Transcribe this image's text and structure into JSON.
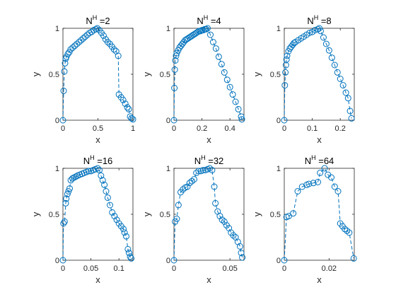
{
  "figure": {
    "background": "#ffffff"
  },
  "chart_data": [
    {
      "type": "scatter",
      "title": {
        "base": "N",
        "sup": "H",
        "suffix": " =2"
      },
      "xlabel": "x",
      "ylabel": "y",
      "xlim": [
        0,
        1
      ],
      "ylim": [
        0,
        1
      ],
      "xticks": [
        0,
        0.5,
        1
      ],
      "xtick_labels": [
        "0",
        "0.5",
        "1"
      ],
      "yticks": [
        0,
        0.5,
        1
      ],
      "ytick_labels": [
        "0",
        "0.5",
        "1"
      ],
      "series": [
        {
          "color": "#0072BD",
          "marker": "circle",
          "line_style": "dashed",
          "points": [
            [
              0,
              0
            ],
            [
              0.01,
              0.32
            ],
            [
              0.02,
              0.53
            ],
            [
              0.03,
              0.62
            ],
            [
              0.04,
              0.67
            ],
            [
              0.05,
              0.69
            ],
            [
              0.07,
              0.72
            ],
            [
              0.09,
              0.74
            ],
            [
              0.11,
              0.77
            ],
            [
              0.14,
              0.79
            ],
            [
              0.17,
              0.81
            ],
            [
              0.2,
              0.83
            ],
            [
              0.23,
              0.85
            ],
            [
              0.26,
              0.87
            ],
            [
              0.29,
              0.89
            ],
            [
              0.32,
              0.91
            ],
            [
              0.35,
              0.93
            ],
            [
              0.38,
              0.95
            ],
            [
              0.41,
              0.96
            ],
            [
              0.44,
              0.98
            ],
            [
              0.47,
              0.99
            ],
            [
              0.49,
              1.0
            ],
            [
              0.52,
              0.98
            ],
            [
              0.55,
              0.95
            ],
            [
              0.58,
              0.92
            ],
            [
              0.61,
              0.88
            ],
            [
              0.64,
              0.85
            ],
            [
              0.67,
              0.83
            ],
            [
              0.7,
              0.8
            ],
            [
              0.73,
              0.77
            ],
            [
              0.76,
              0.75
            ],
            [
              0.79,
              0.7
            ],
            [
              0.8,
              0.28
            ],
            [
              0.83,
              0.25
            ],
            [
              0.86,
              0.22
            ],
            [
              0.89,
              0.18
            ],
            [
              0.92,
              0.14
            ],
            [
              0.94,
              0.12
            ],
            [
              0.96,
              0.04
            ],
            [
              0.98,
              0.02
            ],
            [
              1.0,
              0.01
            ]
          ]
        }
      ]
    },
    {
      "type": "scatter",
      "title": {
        "base": "N",
        "sup": "H",
        "suffix": " =4"
      },
      "xlabel": "x",
      "ylabel": "y",
      "xlim": [
        0,
        0.5
      ],
      "ylim": [
        0,
        1
      ],
      "xticks": [
        0,
        0.2,
        0.4
      ],
      "xtick_labels": [
        "0",
        "0.2",
        "0.4"
      ],
      "yticks": [
        0,
        0.5,
        1
      ],
      "ytick_labels": [
        "0",
        "0.5",
        "1"
      ],
      "series": [
        {
          "color": "#0072BD",
          "marker": "circle",
          "line_style": "dashed",
          "points": [
            [
              0,
              0
            ],
            [
              0.003,
              0.35
            ],
            [
              0.006,
              0.55
            ],
            [
              0.01,
              0.65
            ],
            [
              0.015,
              0.7
            ],
            [
              0.02,
              0.73
            ],
            [
              0.03,
              0.76
            ],
            [
              0.04,
              0.79
            ],
            [
              0.05,
              0.81
            ],
            [
              0.06,
              0.83
            ],
            [
              0.07,
              0.85
            ],
            [
              0.08,
              0.87
            ],
            [
              0.09,
              0.88
            ],
            [
              0.1,
              0.89
            ],
            [
              0.11,
              0.9
            ],
            [
              0.12,
              0.91
            ],
            [
              0.13,
              0.92
            ],
            [
              0.14,
              0.93
            ],
            [
              0.15,
              0.94
            ],
            [
              0.16,
              0.95
            ],
            [
              0.17,
              0.96
            ],
            [
              0.18,
              0.97
            ],
            [
              0.19,
              0.97
            ],
            [
              0.2,
              0.98
            ],
            [
              0.21,
              0.98
            ],
            [
              0.22,
              0.99
            ],
            [
              0.23,
              0.99
            ],
            [
              0.24,
              1.0
            ],
            [
              0.26,
              0.93
            ],
            [
              0.28,
              0.85
            ],
            [
              0.3,
              0.78
            ],
            [
              0.32,
              0.69
            ],
            [
              0.34,
              0.61
            ],
            [
              0.36,
              0.52
            ],
            [
              0.38,
              0.44
            ],
            [
              0.4,
              0.36
            ],
            [
              0.42,
              0.28
            ],
            [
              0.44,
              0.2
            ],
            [
              0.46,
              0.12
            ],
            [
              0.48,
              0.04
            ],
            [
              0.485,
              0.01
            ]
          ]
        }
      ]
    },
    {
      "type": "scatter",
      "title": {
        "base": "N",
        "sup": "H",
        "suffix": " =8"
      },
      "xlabel": "x",
      "ylabel": "y",
      "xlim": [
        0,
        0.25
      ],
      "ylim": [
        0,
        1
      ],
      "xticks": [
        0,
        0.1,
        0.2
      ],
      "xtick_labels": [
        "0",
        "0.1",
        "0.2"
      ],
      "yticks": [
        0,
        0.5,
        1
      ],
      "ytick_labels": [
        "0",
        "0.5",
        "1"
      ],
      "series": [
        {
          "color": "#0072BD",
          "marker": "circle",
          "line_style": "dashed",
          "points": [
            [
              0,
              0
            ],
            [
              0.002,
              0.38
            ],
            [
              0.004,
              0.52
            ],
            [
              0.006,
              0.6
            ],
            [
              0.008,
              0.66
            ],
            [
              0.01,
              0.7
            ],
            [
              0.015,
              0.75
            ],
            [
              0.02,
              0.78
            ],
            [
              0.025,
              0.8
            ],
            [
              0.03,
              0.82
            ],
            [
              0.035,
              0.84
            ],
            [
              0.04,
              0.85
            ],
            [
              0.05,
              0.87
            ],
            [
              0.06,
              0.89
            ],
            [
              0.07,
              0.91
            ],
            [
              0.08,
              0.93
            ],
            [
              0.09,
              0.95
            ],
            [
              0.1,
              0.96
            ],
            [
              0.11,
              0.98
            ],
            [
              0.12,
              0.99
            ],
            [
              0.125,
              1.0
            ],
            [
              0.13,
              0.97
            ],
            [
              0.14,
              0.9
            ],
            [
              0.15,
              0.83
            ],
            [
              0.16,
              0.76
            ],
            [
              0.17,
              0.68
            ],
            [
              0.18,
              0.6
            ],
            [
              0.19,
              0.52
            ],
            [
              0.2,
              0.45
            ],
            [
              0.21,
              0.38
            ],
            [
              0.22,
              0.3
            ],
            [
              0.228,
              0.24
            ],
            [
              0.235,
              0.1
            ],
            [
              0.24,
              0.02
            ]
          ]
        }
      ]
    },
    {
      "type": "scatter",
      "title": {
        "base": "N",
        "sup": "H",
        "suffix": " =16"
      },
      "xlabel": "x",
      "ylabel": "y",
      "xlim": [
        0,
        0.125
      ],
      "ylim": [
        0,
        1
      ],
      "xticks": [
        0,
        0.05,
        0.1
      ],
      "xtick_labels": [
        "0",
        "0.05",
        "0.1"
      ],
      "yticks": [
        0,
        0.5,
        1
      ],
      "ytick_labels": [
        "0",
        "0.5",
        "1"
      ],
      "series": [
        {
          "color": "#0072BD",
          "marker": "circle",
          "line_style": "dashed",
          "points": [
            [
              0,
              0
            ],
            [
              0.001,
              0.4
            ],
            [
              0.003,
              0.42
            ],
            [
              0.005,
              0.62
            ],
            [
              0.006,
              0.67
            ],
            [
              0.008,
              0.72
            ],
            [
              0.01,
              0.75
            ],
            [
              0.012,
              0.78
            ],
            [
              0.014,
              0.87
            ],
            [
              0.017,
              0.89
            ],
            [
              0.02,
              0.9
            ],
            [
              0.023,
              0.91
            ],
            [
              0.026,
              0.92
            ],
            [
              0.03,
              0.93
            ],
            [
              0.034,
              0.94
            ],
            [
              0.038,
              0.95
            ],
            [
              0.042,
              0.96
            ],
            [
              0.046,
              0.97
            ],
            [
              0.05,
              0.97
            ],
            [
              0.054,
              0.98
            ],
            [
              0.058,
              0.99
            ],
            [
              0.062,
              1.0
            ],
            [
              0.065,
              0.98
            ],
            [
              0.068,
              0.92
            ],
            [
              0.071,
              0.87
            ],
            [
              0.074,
              0.82
            ],
            [
              0.077,
              0.75
            ],
            [
              0.08,
              0.68
            ],
            [
              0.084,
              0.6
            ],
            [
              0.088,
              0.52
            ],
            [
              0.092,
              0.48
            ],
            [
              0.096,
              0.44
            ],
            [
              0.1,
              0.4
            ],
            [
              0.104,
              0.37
            ],
            [
              0.108,
              0.34
            ],
            [
              0.11,
              0.3
            ],
            [
              0.113,
              0.26
            ],
            [
              0.116,
              0.12
            ],
            [
              0.118,
              0.08
            ],
            [
              0.12,
              0.04
            ],
            [
              0.122,
              0.02
            ]
          ]
        }
      ]
    },
    {
      "type": "scatter",
      "title": {
        "base": "N",
        "sup": "H",
        "suffix": " =32"
      },
      "xlabel": "x",
      "ylabel": "y",
      "xlim": [
        0,
        0.0625
      ],
      "ylim": [
        0,
        1
      ],
      "xticks": [
        0,
        0.05
      ],
      "xtick_labels": [
        "0",
        "0.05"
      ],
      "yticks": [
        0,
        0.5,
        1
      ],
      "ytick_labels": [
        "0",
        "0.5",
        "1"
      ],
      "series": [
        {
          "color": "#0072BD",
          "marker": "circle",
          "line_style": "dashed",
          "points": [
            [
              0,
              0
            ],
            [
              0.001,
              0.42
            ],
            [
              0.0025,
              0.45
            ],
            [
              0.004,
              0.6
            ],
            [
              0.006,
              0.74
            ],
            [
              0.008,
              0.77
            ],
            [
              0.01,
              0.79
            ],
            [
              0.012,
              0.8
            ],
            [
              0.014,
              0.84
            ],
            [
              0.016,
              0.86
            ],
            [
              0.018,
              0.88
            ],
            [
              0.02,
              0.95
            ],
            [
              0.022,
              0.97
            ],
            [
              0.024,
              0.97
            ],
            [
              0.026,
              0.98
            ],
            [
              0.028,
              0.98
            ],
            [
              0.03,
              0.99
            ],
            [
              0.032,
              1.0
            ],
            [
              0.034,
              0.98
            ],
            [
              0.036,
              0.8
            ],
            [
              0.037,
              0.62
            ],
            [
              0.039,
              0.53
            ],
            [
              0.041,
              0.48
            ],
            [
              0.043,
              0.44
            ],
            [
              0.045,
              0.42
            ],
            [
              0.047,
              0.38
            ],
            [
              0.049,
              0.35
            ],
            [
              0.051,
              0.3
            ],
            [
              0.053,
              0.27
            ],
            [
              0.055,
              0.25
            ],
            [
              0.057,
              0.2
            ],
            [
              0.059,
              0.15
            ],
            [
              0.06,
              0.08
            ],
            [
              0.061,
              0.03
            ]
          ]
        }
      ]
    },
    {
      "type": "scatter",
      "title": {
        "base": "N",
        "sup": "H",
        "suffix": " =64"
      },
      "xlabel": "x",
      "ylabel": "y",
      "xlim": [
        0,
        0.03125
      ],
      "ylim": [
        0,
        1
      ],
      "xticks": [
        0,
        0.02
      ],
      "xtick_labels": [
        "0",
        "0.02"
      ],
      "yticks": [
        0,
        0.5,
        1
      ],
      "ytick_labels": [
        "0",
        "0.5",
        "1"
      ],
      "series": [
        {
          "color": "#0072BD",
          "marker": "circle",
          "line_style": "dashed",
          "points": [
            [
              0,
              0
            ],
            [
              0.001,
              0.47
            ],
            [
              0.002,
              0.48
            ],
            [
              0.004,
              0.51
            ],
            [
              0.006,
              0.75
            ],
            [
              0.008,
              0.8
            ],
            [
              0.01,
              0.82
            ],
            [
              0.011,
              0.83
            ],
            [
              0.013,
              0.84
            ],
            [
              0.015,
              0.85
            ],
            [
              0.016,
              0.95
            ],
            [
              0.018,
              1.0
            ],
            [
              0.0195,
              0.93
            ],
            [
              0.021,
              0.9
            ],
            [
              0.0225,
              0.8
            ],
            [
              0.024,
              0.75
            ],
            [
              0.025,
              0.4
            ],
            [
              0.026,
              0.37
            ],
            [
              0.027,
              0.34
            ],
            [
              0.028,
              0.32
            ],
            [
              0.029,
              0.3
            ],
            [
              0.031,
              0.02
            ]
          ]
        }
      ]
    }
  ]
}
